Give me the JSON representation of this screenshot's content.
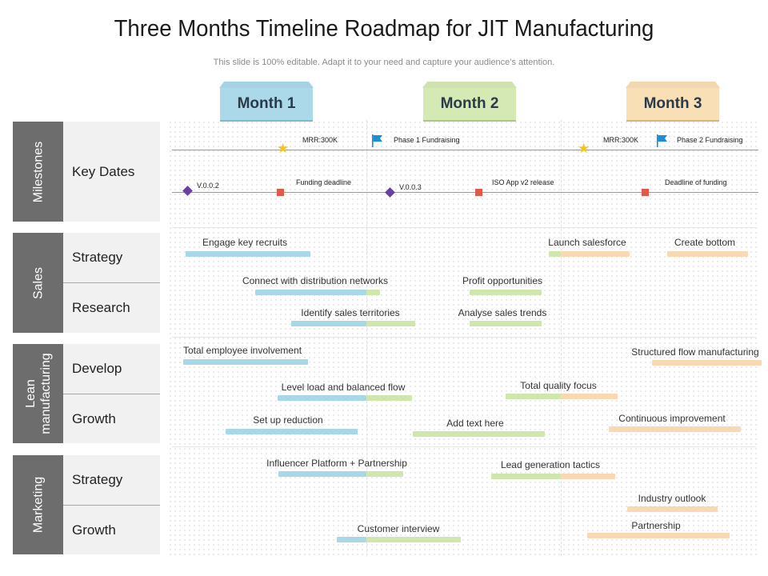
{
  "title": "Three Months Timeline Roadmap for JIT Manufacturing",
  "subtitle": "This slide is 100% editable. Adapt it to your need and capture your audience’s attention.",
  "months": [
    "Month 1",
    "Month 2",
    "Month 3"
  ],
  "colors": {
    "month1": "#acd9ea",
    "month2": "#d5e9b5",
    "month3": "#f9dfb6",
    "group": "#6d6d6d",
    "row": "#f1f1f1",
    "diamond": "#6a3fa3",
    "square": "#e05a4b",
    "star": "#f5c518",
    "flag": "#1e8fd6"
  },
  "groups": [
    {
      "label": "Milestones",
      "rows": [
        "Key Dates"
      ]
    },
    {
      "label": "Sales",
      "rows": [
        "Strategy",
        "Research"
      ]
    },
    {
      "label": "Lean manufacturing",
      "rows": [
        "Develop",
        "Growth"
      ]
    },
    {
      "label": "Marketing",
      "rows": [
        "Strategy",
        "Growth"
      ]
    }
  ],
  "milestones": {
    "top": [
      {
        "text": "MRR:300K",
        "icon": "star-icon"
      },
      {
        "text": "Phase 1 Fundraising",
        "icon": "flag-icon"
      },
      {
        "text": "MRR:300K",
        "icon": "star-icon"
      },
      {
        "text": "Phase 2 Fundraising",
        "icon": "flag-icon"
      }
    ],
    "bottom": [
      {
        "text": "V.0.0.2",
        "icon": "diamond-icon"
      },
      {
        "text": "Funding deadline",
        "icon": "square-icon"
      },
      {
        "text": "V.0.0.3",
        "icon": "diamond-icon"
      },
      {
        "text": "ISO App v2 release",
        "icon": "square-icon"
      },
      {
        "text": "Deadline of funding",
        "icon": "square-icon"
      }
    ]
  },
  "tasks": [
    "Engage key recruits",
    "Launch salesforce",
    "Create bottom",
    "Connect with distribution networks",
    "Profit opportunities",
    "Identify sales territories",
    "Analyse sales trends",
    "Total employee involvement",
    "Structured flow manufacturing",
    "Level load and balanced flow",
    "Total quality focus",
    "Set up reduction",
    "Add text here",
    "Continuous improvement",
    "Influencer Platform + Partnership",
    "Lead generation tactics",
    "Industry outlook",
    "Customer interview",
    "Partnership"
  ]
}
